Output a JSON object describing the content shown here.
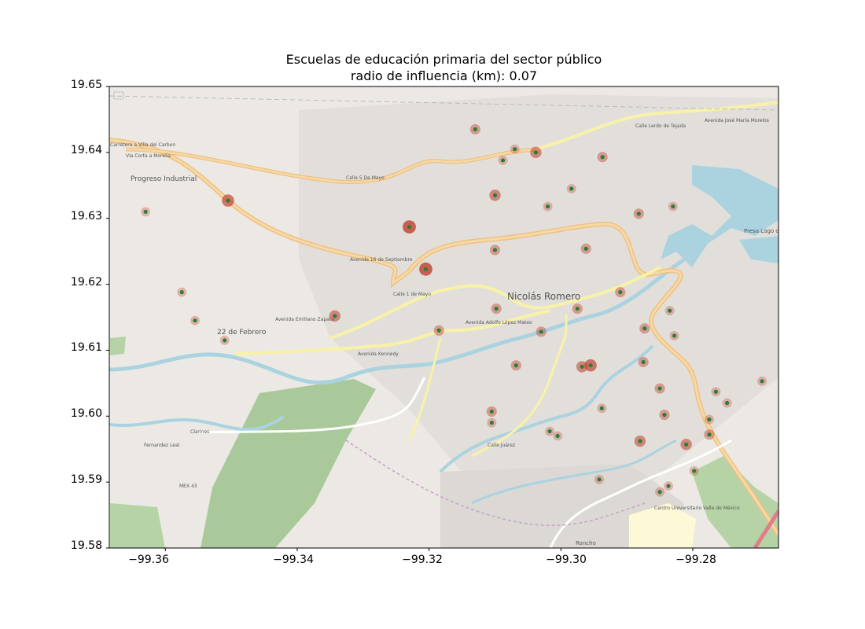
{
  "chart_data": {
    "type": "scatter",
    "title": "Escuelas de educación primaria del sector público",
    "subtitle": "radio de influencia (km): 0.07",
    "xlim": [
      -99.3685,
      -99.267
    ],
    "ylim": [
      19.58,
      19.65
    ],
    "xticks": [
      "−99.36",
      "−99.34",
      "−99.32",
      "−99.30",
      "−99.28"
    ],
    "xtick_values": [
      -99.36,
      -99.34,
      -99.32,
      -99.3,
      -99.28
    ],
    "yticks": [
      "19.58",
      "19.59",
      "19.60",
      "19.61",
      "19.62",
      "19.63",
      "19.64",
      "19.65"
    ],
    "ytick_values": [
      19.58,
      19.59,
      19.6,
      19.61,
      19.62,
      19.63,
      19.64,
      19.65
    ],
    "grid": false,
    "basemap_labels": [
      "Nicolás Romero",
      "Progreso Industrial",
      "22 de Febrero",
      "Centro Universitario Valle de México",
      "Presa Lago de Guadalupe",
      "Avenida Kennedy",
      "Calle 1 de Mayo",
      "Calle 5 De Mayo",
      "Avenida Adolfo López Mateo",
      "Vía Corta a Morelia",
      "Carretera a Villa del Carbon",
      "Calle Lerdo de Tejada",
      "Avenida José María Morelos",
      "Fernandez Leal",
      "Clarines",
      "MEX 43",
      "Roncho",
      "Avenida Emiliano Zapata",
      "Avenida 16 de Septiembre",
      "Calle Juárez"
    ],
    "series": [
      {
        "marker_color": "#2e7d32",
        "halo_color": "#c0392b",
        "points": [
          {
            "x": -99.313,
            "y": 19.6435,
            "r": 1
          },
          {
            "x": -99.307,
            "y": 19.6405,
            "r": 0
          },
          {
            "x": -99.3038,
            "y": 19.64,
            "r": 2
          },
          {
            "x": -99.3088,
            "y": 19.6388,
            "r": 0
          },
          {
            "x": -99.2937,
            "y": 19.6393,
            "r": 1
          },
          {
            "x": -99.2984,
            "y": 19.6345,
            "r": 0
          },
          {
            "x": -99.31,
            "y": 19.6335,
            "r": 2
          },
          {
            "x": -99.3505,
            "y": 19.6327,
            "r": 3
          },
          {
            "x": -99.363,
            "y": 19.631,
            "r": 0
          },
          {
            "x": -99.302,
            "y": 19.6318,
            "r": 0
          },
          {
            "x": -99.283,
            "y": 19.6318,
            "r": 0
          },
          {
            "x": -99.2882,
            "y": 19.6307,
            "r": 1
          },
          {
            "x": -99.323,
            "y": 19.6287,
            "r": 4
          },
          {
            "x": -99.2962,
            "y": 19.6254,
            "r": 1
          },
          {
            "x": -99.31,
            "y": 19.6252,
            "r": 1
          },
          {
            "x": -99.3205,
            "y": 19.6223,
            "r": 4
          },
          {
            "x": -99.3575,
            "y": 19.6188,
            "r": 0
          },
          {
            "x": -99.291,
            "y": 19.6188,
            "r": 1
          },
          {
            "x": -99.3098,
            "y": 19.6163,
            "r": 1
          },
          {
            "x": -99.2975,
            "y": 19.6163,
            "r": 1
          },
          {
            "x": -99.2835,
            "y": 19.616,
            "r": 0
          },
          {
            "x": -99.3343,
            "y": 19.6152,
            "r": 2
          },
          {
            "x": -99.3555,
            "y": 19.6145,
            "r": 0
          },
          {
            "x": -99.2873,
            "y": 19.6133,
            "r": 1
          },
          {
            "x": -99.3185,
            "y": 19.613,
            "r": 1
          },
          {
            "x": -99.303,
            "y": 19.6128,
            "r": 1
          },
          {
            "x": -99.2828,
            "y": 19.6122,
            "r": 0
          },
          {
            "x": -99.351,
            "y": 19.6115,
            "r": 0
          },
          {
            "x": -99.2875,
            "y": 19.6082,
            "r": 1
          },
          {
            "x": -99.3068,
            "y": 19.6077,
            "r": 1
          },
          {
            "x": -99.2968,
            "y": 19.6075,
            "r": 2
          },
          {
            "x": -99.2955,
            "y": 19.6077,
            "r": 3
          },
          {
            "x": -99.2695,
            "y": 19.6053,
            "r": 0
          },
          {
            "x": -99.285,
            "y": 19.6042,
            "r": 1
          },
          {
            "x": -99.2765,
            "y": 19.6037,
            "r": 0
          },
          {
            "x": -99.2748,
            "y": 19.602,
            "r": 0
          },
          {
            "x": -99.2938,
            "y": 19.6012,
            "r": 0
          },
          {
            "x": -99.3105,
            "y": 19.6007,
            "r": 1
          },
          {
            "x": -99.2843,
            "y": 19.6002,
            "r": 1
          },
          {
            "x": -99.2775,
            "y": 19.5995,
            "r": 0
          },
          {
            "x": -99.3105,
            "y": 19.599,
            "r": 0
          },
          {
            "x": -99.3017,
            "y": 19.5977,
            "r": 0
          },
          {
            "x": -99.3005,
            "y": 19.597,
            "r": 0
          },
          {
            "x": -99.2775,
            "y": 19.5972,
            "r": 1
          },
          {
            "x": -99.288,
            "y": 19.5962,
            "r": 2
          },
          {
            "x": -99.281,
            "y": 19.5957,
            "r": 2
          },
          {
            "x": -99.2798,
            "y": 19.5917,
            "r": 0
          },
          {
            "x": -99.2942,
            "y": 19.5904,
            "r": 0
          },
          {
            "x": -99.2837,
            "y": 19.5894,
            "r": 0
          },
          {
            "x": -99.285,
            "y": 19.5885,
            "r": 0
          }
        ]
      }
    ]
  }
}
